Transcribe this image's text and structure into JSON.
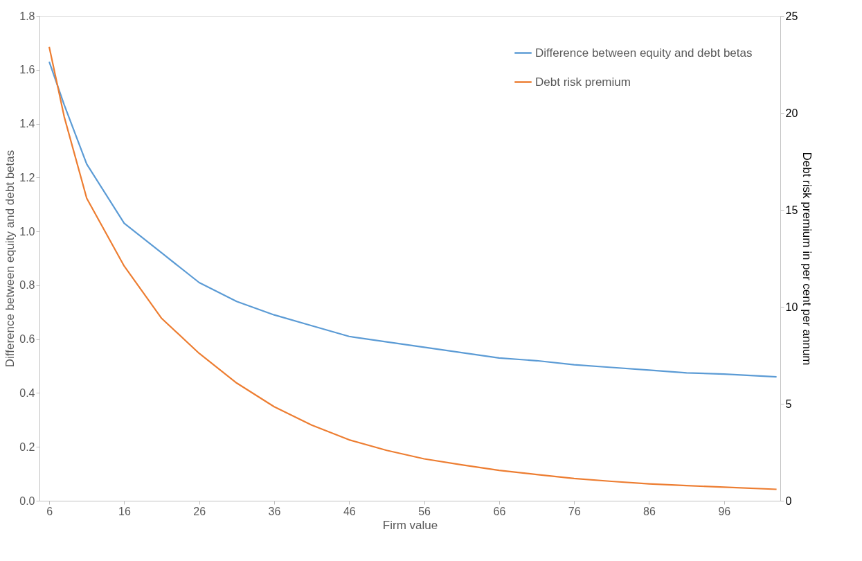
{
  "chart_data": {
    "type": "line",
    "xlabel": "Firm value",
    "ylabel": "Difference between equity and debt betas",
    "y2label": "Debt risk premium in per cent per annum",
    "x": [
      6,
      8,
      11,
      16,
      21,
      26,
      31,
      36,
      41,
      46,
      51,
      56,
      61,
      66,
      71,
      76,
      81,
      86,
      91,
      96,
      103
    ],
    "series": [
      {
        "name": "Difference between equity and debt betas",
        "color": "#5b9bd5",
        "values": [
          1.63,
          1.47,
          1.25,
          1.03,
          0.92,
          0.81,
          0.74,
          0.69,
          0.65,
          0.61,
          0.59,
          0.57,
          0.55,
          0.53,
          0.52,
          0.505,
          0.495,
          0.485,
          0.475,
          0.47,
          0.46
        ]
      },
      {
        "name": "Debt risk premium",
        "color": "#ed7d31",
        "axis": "y2",
        "values": [
          23.4,
          19.8,
          15.6,
          12.1,
          9.4,
          7.6,
          6.07,
          4.85,
          3.9,
          3.14,
          2.6,
          2.16,
          1.85,
          1.57,
          1.35,
          1.15,
          1.0,
          0.87,
          0.78,
          0.7,
          0.59
        ]
      }
    ],
    "xlim": [
      4.7,
      103.5
    ],
    "xticks": [
      6,
      16,
      26,
      36,
      46,
      56,
      66,
      76,
      86,
      96
    ],
    "ylim": [
      0,
      1.8
    ],
    "yticks": [
      {
        "value": 0,
        "label": "0.0"
      },
      {
        "value": 0.2,
        "label": "0.2"
      },
      {
        "value": 0.4,
        "label": "0.4"
      },
      {
        "value": 0.6,
        "label": "0.6"
      },
      {
        "value": 0.8,
        "label": "0.8"
      },
      {
        "value": 1.0,
        "label": "1.0"
      },
      {
        "value": 1.2,
        "label": "1.2"
      },
      {
        "value": 1.4,
        "label": "1.4"
      },
      {
        "value": 1.6,
        "label": "1.6"
      },
      {
        "value": 1.8,
        "label": "1.8"
      }
    ],
    "y2lim": [
      0,
      25
    ],
    "y2ticks": [
      0,
      5,
      10,
      15,
      20,
      25
    ],
    "grid": false,
    "legend": "top right",
    "marker": "none",
    "line_style": "solid"
  }
}
